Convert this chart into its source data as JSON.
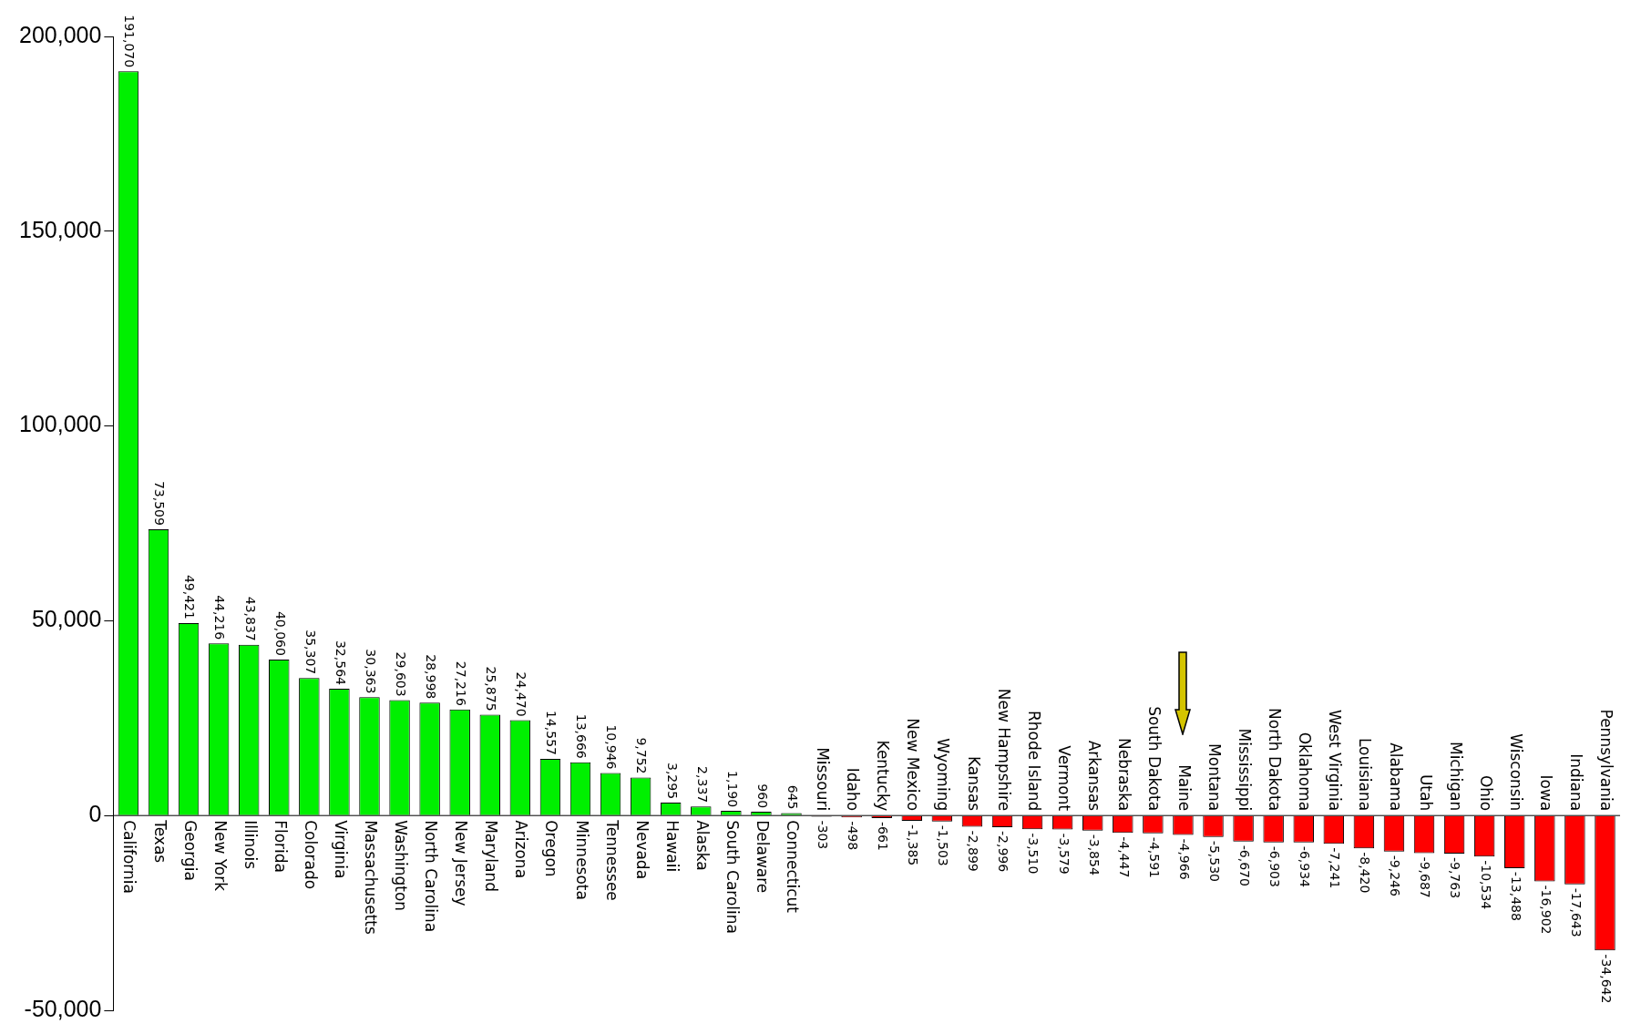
{
  "chart_data": {
    "type": "bar",
    "categories": [
      "California",
      "Texas",
      "Georgia",
      "New York",
      "Illinois",
      "Florida",
      "Colorado",
      "Virginia",
      "Massachusetts",
      "Washington",
      "North Carolina",
      "New Jersey",
      "Maryland",
      "Arizona",
      "Oregon",
      "Minnesota",
      "Tennessee",
      "Nevada",
      "Hawaii",
      "Alaska",
      "South Carolina",
      "Delaware",
      "Connecticut",
      "Missouri",
      "Idaho",
      "Kentucky",
      "New Mexico",
      "Wyoming",
      "Kansas",
      "New Hampshire",
      "Rhode Island",
      "Vermont",
      "Arkansas",
      "Nebraska",
      "South Dakota",
      "Maine",
      "Montana",
      "Mississippi",
      "North Dakota",
      "Oklahoma",
      "West Virginia",
      "Louisiana",
      "Alabama",
      "Utah",
      "Michigan",
      "Ohio",
      "Wisconsin",
      "Iowa",
      "Indiana",
      "Pennsylvania"
    ],
    "values": [
      191070,
      73509,
      49421,
      44216,
      43837,
      40060,
      35307,
      32564,
      30363,
      29603,
      28998,
      27216,
      25875,
      24470,
      14557,
      13666,
      10946,
      9752,
      3295,
      2337,
      1190,
      960,
      645,
      -303,
      -498,
      -661,
      -1385,
      -1503,
      -2899,
      -2996,
      -3510,
      -3579,
      -3854,
      -4447,
      -4591,
      -4966,
      -5530,
      -6670,
      -6903,
      -6934,
      -7241,
      -8420,
      -9246,
      -9687,
      -9763,
      -10534,
      -13488,
      -16902,
      -17643,
      -34642
    ],
    "value_labels": [
      "191,070",
      "73,509",
      "49,421",
      "44,216",
      "43,837",
      "40,060",
      "35,307",
      "32,564",
      "30,363",
      "29,603",
      "28,998",
      "27,216",
      "25,875",
      "24,470",
      "14,557",
      "13,666",
      "10,946",
      "9,752",
      "3,295",
      "2,337",
      "1,190",
      "960",
      "645",
      "-303",
      "-498",
      "-661",
      "-1,385",
      "-1,503",
      "-2,899",
      "-2,996",
      "-3,510",
      "-3,579",
      "-3,854",
      "-4,447",
      "-4,591",
      "-4,966",
      "-5,530",
      "-6,670",
      "-6,903",
      "-6,934",
      "-7,241",
      "-8,420",
      "-9,246",
      "-9,687",
      "-9,763",
      "-10,534",
      "-13,488",
      "-16,902",
      "-17,643",
      "-34,642"
    ],
    "colors": [
      "#00f000",
      "#00f000",
      "#00f000",
      "#00f000",
      "#00f000",
      "#00f000",
      "#00f000",
      "#00f000",
      "#00f000",
      "#00f000",
      "#00f000",
      "#00f000",
      "#00f000",
      "#00f000",
      "#00f000",
      "#00f000",
      "#00f000",
      "#00f000",
      "#00f000",
      "#00f000",
      "#00f000",
      "#00f000",
      "#00f000",
      "#ff0000",
      "#ff0000",
      "#ff0000",
      "#ff0000",
      "#ff0000",
      "#ff0000",
      "#ff0000",
      "#ff0000",
      "#ff0000",
      "#ff0000",
      "#ff0000",
      "#ff0000",
      "#ff0000",
      "#ff0000",
      "#ff0000",
      "#ff0000",
      "#ff0000",
      "#ff0000",
      "#ff0000",
      "#ff0000",
      "#ff0000",
      "#ff0000",
      "#ff0000",
      "#ff0000",
      "#ff0000",
      "#ff0000",
      "#ff0000"
    ],
    "ylim": [
      -50000,
      200000
    ],
    "yticks": [
      {
        "value": -50000,
        "label": "-50,000"
      },
      {
        "value": 0,
        "label": "0"
      },
      {
        "value": 50000,
        "label": "50,000"
      },
      {
        "value": 100000,
        "label": "100,000"
      },
      {
        "value": 150000,
        "label": "150,000"
      },
      {
        "value": 200000,
        "label": "200,000"
      }
    ],
    "grid": false,
    "legend": false
  }
}
